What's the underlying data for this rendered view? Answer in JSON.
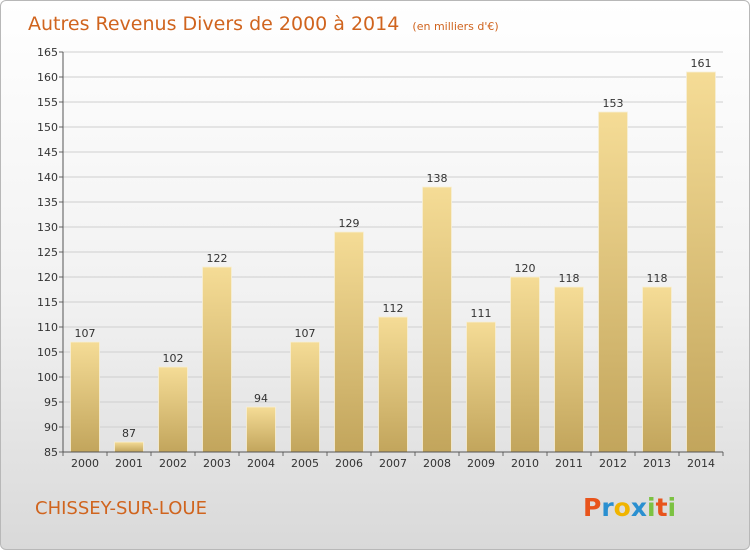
{
  "chart_data": {
    "type": "bar",
    "title": "Autres Revenus Divers de 2000 à 2014",
    "unit_note": "(en milliers d'€)",
    "categories": [
      "2000",
      "2001",
      "2002",
      "2003",
      "2004",
      "2005",
      "2006",
      "2007",
      "2008",
      "2009",
      "2010",
      "2011",
      "2012",
      "2013",
      "2014"
    ],
    "values": [
      107,
      87,
      102,
      122,
      94,
      107,
      129,
      112,
      138,
      111,
      120,
      118,
      153,
      118,
      161
    ],
    "ylim": [
      85,
      165
    ],
    "yticks": [
      85,
      90,
      95,
      100,
      105,
      110,
      115,
      120,
      125,
      130,
      135,
      140,
      145,
      150,
      155,
      160,
      165
    ],
    "grid": true,
    "bar_color_top": "#f5dc96",
    "bar_color_bottom": "#c2a55c"
  },
  "footer": {
    "commune": "CHISSEY-SUR-LOUE",
    "logo": "Proxiti"
  },
  "colors": {
    "accent": "#d0641e",
    "logo_letters": [
      "#e8541c",
      "#2a8fd0",
      "#f0b400",
      "#2a8fd0",
      "#7cc242",
      "#e8541c",
      "#7cc242"
    ]
  }
}
